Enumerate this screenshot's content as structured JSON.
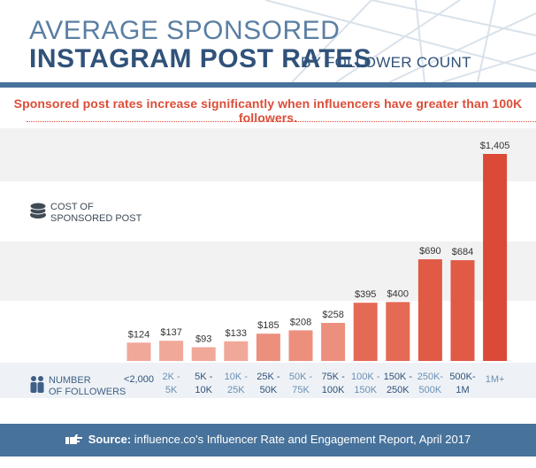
{
  "header": {
    "title_line1": "AVERAGE SPONSORED",
    "title_line2": "INSTAGRAM POST RATES",
    "title_suffix": "BY FOLLOWER COUNT"
  },
  "subtitle": "Sponsored post rates increase significantly when influencers have greater than 100K followers.",
  "legend": {
    "cost_line1": "COST OF",
    "cost_line2": "SPONSORED POST",
    "followers_line1": "NUMBER",
    "followers_line2": "OF FOLLOWERS",
    "cost_icon": "coin-stack-icon",
    "followers_icon": "people-icon"
  },
  "footer": {
    "source_label": "Source:",
    "source_text": " influence.co's Influencer Rate and Engagement Report, April 2017",
    "icon": "pointing-hand-icon"
  },
  "colors": {
    "title_light": "#5a7fa3",
    "title_dark": "#30527a",
    "accent_red": "#dc4d38",
    "footer_blue": "#47729b"
  },
  "chart_data": {
    "type": "bar",
    "title": "Average Sponsored Instagram Post Rates by Follower Count",
    "xlabel": "NUMBER OF FOLLOWERS",
    "ylabel": "COST OF SPONSORED POST",
    "ylim": [
      0,
      1405
    ],
    "categories": [
      {
        "line1": "<2,000",
        "line2": ""
      },
      {
        "line1": "2K -",
        "line2": "5K"
      },
      {
        "line1": "5K -",
        "line2": "10K"
      },
      {
        "line1": "10K -",
        "line2": "25K"
      },
      {
        "line1": "25K -",
        "line2": "50K"
      },
      {
        "line1": "50K -",
        "line2": "75K"
      },
      {
        "line1": "75K -",
        "line2": "100K"
      },
      {
        "line1": "100K -",
        "line2": "150K"
      },
      {
        "line1": "150K -",
        "line2": "250K"
      },
      {
        "line1": "250K-",
        "line2": "500K"
      },
      {
        "line1": "500K-",
        "line2": "1M"
      },
      {
        "line1": "1M+",
        "line2": ""
      }
    ],
    "values": [
      124,
      137,
      93,
      133,
      185,
      208,
      258,
      395,
      400,
      690,
      684,
      1405
    ],
    "value_labels": [
      "$124",
      "$137",
      "$93",
      "$133",
      "$185",
      "$208",
      "$258",
      "$395",
      "$400",
      "$690",
      "$684",
      "$1,405"
    ],
    "bar_colors": [
      "#f0a898",
      "#f0a898",
      "#f0a898",
      "#f0a898",
      "#ed8f7d",
      "#ed8f7d",
      "#ed8f7d",
      "#e56a55",
      "#e56a55",
      "#e05a45",
      "#e05a45",
      "#da4a36"
    ],
    "category_colors": [
      "#30527a",
      "#6b8fb3",
      "#30527a",
      "#6b8fb3",
      "#30527a",
      "#6b8fb3",
      "#30527a",
      "#6b8fb3",
      "#30527a",
      "#6b8fb3",
      "#30527a",
      "#6b8fb3"
    ],
    "grid": false
  }
}
